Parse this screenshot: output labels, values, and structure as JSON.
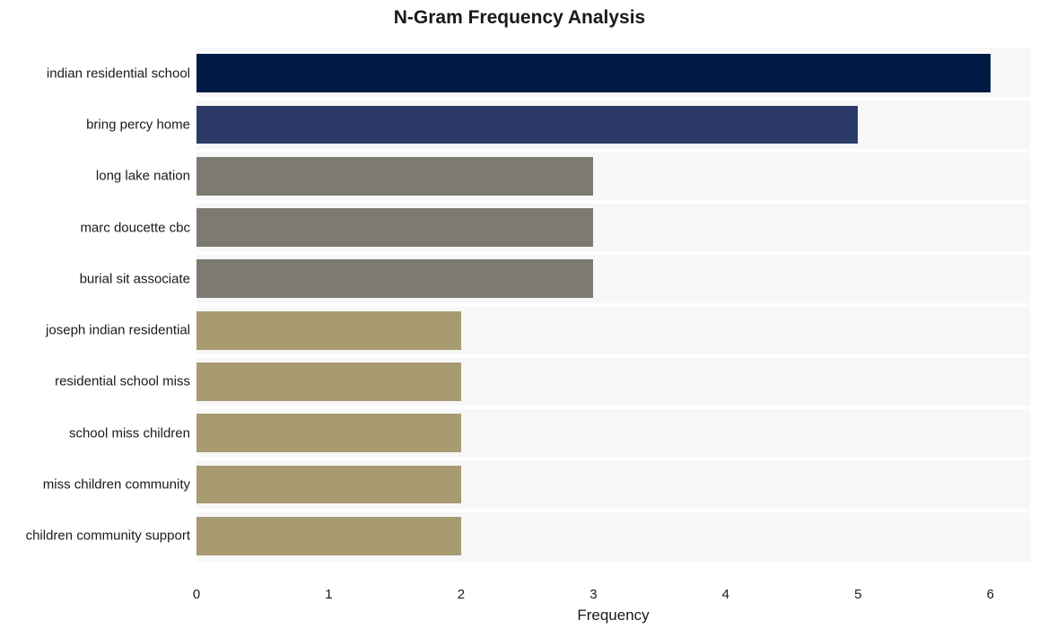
{
  "title": "N-Gram Frequency Analysis",
  "title_fontsize": 21,
  "title_fontweight": "bold",
  "xlabel": "Frequency",
  "xlabel_fontsize": 17,
  "ylabel_fontsize": 15,
  "xtick_fontsize": 15,
  "plot": {
    "background_band_color": "#f7f7f7",
    "grid_color": "#ffffff",
    "xlim": [
      0,
      6.3
    ],
    "xtick_step": 1,
    "xtick_min": 0,
    "xtick_max": 6,
    "row_height_ratio": 0.75
  },
  "bars": [
    {
      "label": "indian residential school",
      "value": 6,
      "color": "#001b45"
    },
    {
      "label": "bring percy home",
      "value": 5,
      "color": "#2b3a67"
    },
    {
      "label": "long lake nation",
      "value": 3,
      "color": "#7d7a72"
    },
    {
      "label": "marc doucette cbc",
      "value": 3,
      "color": "#7d7a72"
    },
    {
      "label": "burial sit associate",
      "value": 3,
      "color": "#7d7a72"
    },
    {
      "label": "joseph indian residential",
      "value": 2,
      "color": "#a89b71"
    },
    {
      "label": "residential school miss",
      "value": 2,
      "color": "#a89b71"
    },
    {
      "label": "school miss children",
      "value": 2,
      "color": "#a89b71"
    },
    {
      "label": "miss children community",
      "value": 2,
      "color": "#a89b71"
    },
    {
      "label": "children community support",
      "value": 2,
      "color": "#a89b71"
    }
  ]
}
